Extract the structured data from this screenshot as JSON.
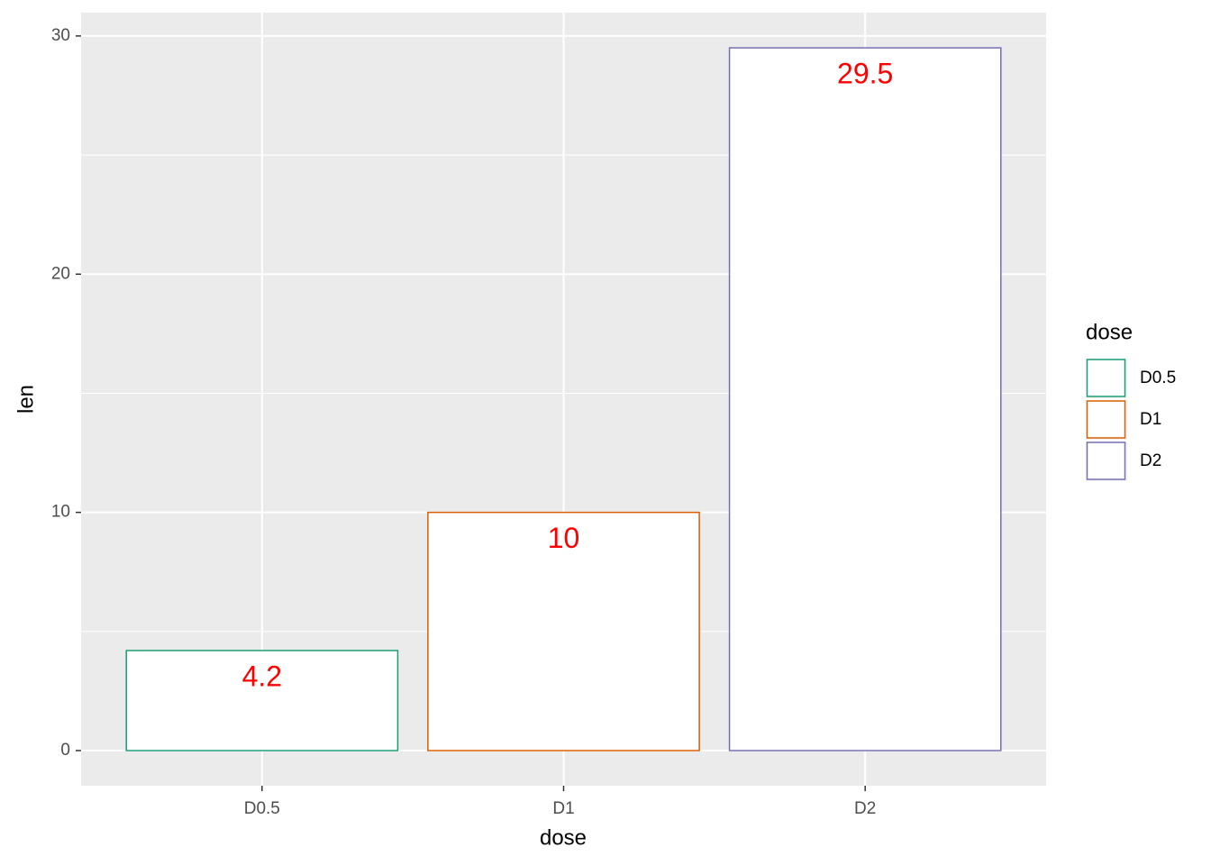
{
  "chart_data": {
    "type": "bar",
    "x_label": "dose",
    "y_label": "len",
    "legend_title": "dose",
    "categories": [
      "D0.5",
      "D1",
      "D2"
    ],
    "values": [
      4.2,
      10,
      29.5
    ],
    "colors": [
      "#1b9e77",
      "#d95f02",
      "#7570b3"
    ],
    "label_color": "#ff0000",
    "ylim": [
      -1.475,
      30.98
    ],
    "yticks": [
      0,
      10,
      20,
      30
    ],
    "minor_yticks": [
      5,
      15,
      25
    ],
    "grid": true,
    "legend": "right"
  }
}
